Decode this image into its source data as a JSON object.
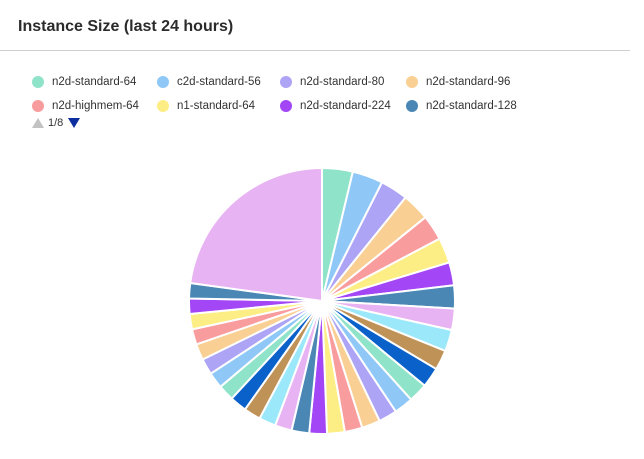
{
  "panel": {
    "title": "Instance Size (last 24 hours)"
  },
  "legend": {
    "rows": [
      [
        {
          "label": "n2d-standard-64",
          "color": "#8fe3c9"
        },
        {
          "label": "c2d-standard-56",
          "color": "#8fc8f7"
        },
        {
          "label": "n2d-standard-80",
          "color": "#aea4f5"
        },
        {
          "label": "n2d-standard-96",
          "color": "#f9cf94"
        }
      ],
      [
        {
          "label": "n2d-highmem-64",
          "color": "#f99c9e"
        },
        {
          "label": "n1-standard-64",
          "color": "#fcee84"
        },
        {
          "label": "n2d-standard-224",
          "color": "#a346f5"
        },
        {
          "label": "n2d-standard-128",
          "color": "#4a87b5"
        }
      ]
    ],
    "pager": {
      "text": "1/8",
      "prev_icon": "triangle-up-icon",
      "next_icon": "triangle-down-icon",
      "prev_color": "#c2c2c2",
      "next_color": "#0b2d9e"
    }
  },
  "chart_data": {
    "type": "pie",
    "series": [
      {
        "name": "n2d-standard-64",
        "value": 4.0,
        "color": "#8fe3c9"
      },
      {
        "name": "c2d-standard-56",
        "value": 4.0,
        "color": "#8fc8f7"
      },
      {
        "name": "n2d-standard-80",
        "value": 3.6,
        "color": "#aea4f5"
      },
      {
        "name": "n2d-standard-96",
        "value": 3.6,
        "color": "#f9cf94"
      },
      {
        "name": "n2d-highmem-64",
        "value": 3.3,
        "color": "#f99c9e"
      },
      {
        "name": "n1-standard-64",
        "value": 3.3,
        "color": "#fcee84"
      },
      {
        "name": "n2d-standard-224",
        "value": 3.0,
        "color": "#a346f5"
      },
      {
        "name": "n2d-standard-128",
        "value": 3.0,
        "color": "#4a87b5"
      },
      {
        "name": "",
        "value": 2.8,
        "color": "#e7b3f2"
      },
      {
        "name": "",
        "value": 2.8,
        "color": "#9be8fa"
      },
      {
        "name": "",
        "value": 2.6,
        "color": "#bf9257"
      },
      {
        "name": "",
        "value": 2.6,
        "color": "#0a61c9"
      },
      {
        "name": "",
        "value": 2.5,
        "color": "#8fe3c9"
      },
      {
        "name": "",
        "value": 2.5,
        "color": "#8fc8f7"
      },
      {
        "name": "",
        "value": 2.4,
        "color": "#aea4f5"
      },
      {
        "name": "",
        "value": 2.4,
        "color": "#f9cf94"
      },
      {
        "name": "",
        "value": 2.3,
        "color": "#f99c9e"
      },
      {
        "name": "",
        "value": 2.3,
        "color": "#fcee84"
      },
      {
        "name": "",
        "value": 2.3,
        "color": "#a346f5"
      },
      {
        "name": "",
        "value": 2.3,
        "color": "#4a87b5"
      },
      {
        "name": "",
        "value": 2.2,
        "color": "#e7b3f2"
      },
      {
        "name": "",
        "value": 2.2,
        "color": "#9be8fa"
      },
      {
        "name": "",
        "value": 2.2,
        "color": "#bf9257"
      },
      {
        "name": "",
        "value": 2.2,
        "color": "#0a61c9"
      },
      {
        "name": "",
        "value": 2.1,
        "color": "#8fe3c9"
      },
      {
        "name": "",
        "value": 2.1,
        "color": "#8fc8f7"
      },
      {
        "name": "",
        "value": 2.1,
        "color": "#aea4f5"
      },
      {
        "name": "",
        "value": 2.1,
        "color": "#f9cf94"
      },
      {
        "name": "",
        "value": 2.0,
        "color": "#f99c9e"
      },
      {
        "name": "",
        "value": 2.0,
        "color": "#fcee84"
      },
      {
        "name": "",
        "value": 2.0,
        "color": "#a346f5"
      },
      {
        "name": "",
        "value": 2.0,
        "color": "#4a87b5"
      },
      {
        "name": "",
        "value": 24.5,
        "color": "#e7b3f2"
      }
    ]
  }
}
